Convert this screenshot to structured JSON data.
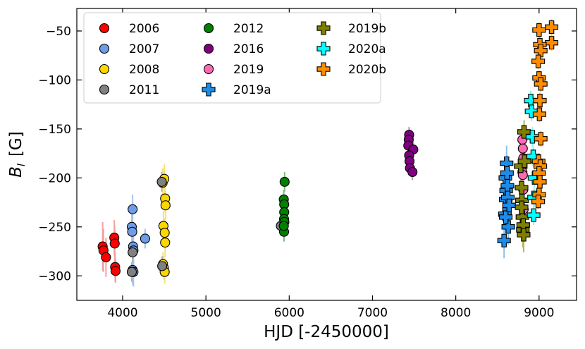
{
  "chart_data": {
    "type": "scatter",
    "title": "",
    "xlabel": "HJD  [-2450000]",
    "ylabel_main": "B",
    "ylabel_sub": "l",
    "ylabel_unit": "[G]",
    "xlim": [
      3450,
      9450
    ],
    "ylim": [
      -325,
      -27
    ],
    "xticks": [
      4000,
      5000,
      6000,
      7000,
      8000,
      9000
    ],
    "yticks": [
      -300,
      -250,
      -200,
      -150,
      -100,
      -50
    ],
    "xtick_labels": [
      "4000",
      "5000",
      "6000",
      "7000",
      "8000",
      "9000"
    ],
    "ytick_labels": [
      "−300",
      "−250",
      "−200",
      "−150",
      "−100",
      "−50"
    ],
    "grid": false,
    "legend_position": "top-left",
    "series": [
      {
        "name": "2006",
        "marker": "circle",
        "color": "#ff0000",
        "error_color": "#f4a0a0",
        "points": [
          [
            3760,
            -270
          ],
          [
            3770,
            -274
          ],
          [
            3800,
            -281
          ],
          [
            3900,
            -261
          ],
          [
            3905,
            -267
          ],
          [
            3910,
            -291
          ],
          [
            3915,
            -295
          ]
        ],
        "errors": [
          25,
          22,
          20,
          18,
          18,
          15,
          12
        ]
      },
      {
        "name": "2007",
        "marker": "circle",
        "color": "#6e9ce6",
        "error_color": "#a8c4ee",
        "points": [
          [
            4110,
            -250
          ],
          [
            4115,
            -255
          ],
          [
            4120,
            -232
          ],
          [
            4125,
            -270
          ],
          [
            4130,
            -274
          ],
          [
            4120,
            -294
          ],
          [
            4130,
            -296
          ],
          [
            4270,
            -262
          ]
        ],
        "errors": [
          15,
          15,
          15,
          15,
          15,
          15,
          15,
          10
        ]
      },
      {
        "name": "2008",
        "marker": "circle",
        "color": "#ffd700",
        "error_color": "#f5e27a",
        "points": [
          [
            4480,
            -205
          ],
          [
            4500,
            -201
          ],
          [
            4510,
            -221
          ],
          [
            4515,
            -228
          ],
          [
            4490,
            -249
          ],
          [
            4505,
            -256
          ],
          [
            4510,
            -266
          ],
          [
            4485,
            -288
          ],
          [
            4495,
            -292
          ],
          [
            4505,
            -296
          ]
        ],
        "errors": [
          15,
          15,
          15,
          15,
          15,
          15,
          15,
          12,
          12,
          12
        ]
      },
      {
        "name": "2011",
        "marker": "circle",
        "color": "#808080",
        "error_color": "#b0b0b0",
        "points": [
          [
            4470,
            -204
          ],
          [
            4475,
            -290
          ],
          [
            5900,
            -249
          ],
          [
            4110,
            -296
          ],
          [
            4120,
            -276
          ]
        ],
        "errors": [
          10,
          10,
          10,
          10,
          10
        ]
      },
      {
        "name": "2012",
        "marker": "circle",
        "color": "#008000",
        "error_color": "#7fbf7f",
        "points": [
          [
            5945,
            -204
          ],
          [
            5935,
            -222
          ],
          [
            5940,
            -227
          ],
          [
            5940,
            -235
          ],
          [
            5938,
            -242
          ],
          [
            5942,
            -245
          ],
          [
            5938,
            -255
          ],
          [
            5935,
            -249
          ]
        ],
        "errors": [
          10,
          10,
          10,
          10,
          10,
          10,
          10,
          10
        ]
      },
      {
        "name": "2016",
        "marker": "circle",
        "color": "#800080",
        "error_color": "#b98bb9",
        "points": [
          [
            7440,
            -156
          ],
          [
            7435,
            -161
          ],
          [
            7430,
            -167
          ],
          [
            7490,
            -171
          ],
          [
            7440,
            -177
          ],
          [
            7445,
            -183
          ],
          [
            7450,
            -190
          ],
          [
            7480,
            -194
          ]
        ],
        "errors": [
          8,
          8,
          8,
          8,
          8,
          8,
          8,
          8
        ]
      },
      {
        "name": "2019",
        "marker": "circle",
        "color": "#ff69b4",
        "error_color": "#f5b3d6",
        "points": [
          [
            8800,
            -161
          ],
          [
            8805,
            -170
          ],
          [
            8810,
            -180
          ],
          [
            8800,
            -194
          ],
          [
            8805,
            -197
          ],
          [
            8810,
            -212
          ],
          [
            8815,
            -232
          ]
        ],
        "errors": [
          10,
          10,
          10,
          10,
          10,
          10,
          10
        ]
      },
      {
        "name": "2019a",
        "marker": "plus",
        "color": "#1e8ce6",
        "error_color": "#8cc0ee",
        "points": [
          [
            8580,
            -264
          ],
          [
            8590,
            -237
          ],
          [
            8595,
            -200
          ],
          [
            8600,
            -222
          ],
          [
            8605,
            -213
          ],
          [
            8610,
            -185
          ],
          [
            8615,
            -195
          ],
          [
            8620,
            -208
          ],
          [
            8625,
            -220
          ],
          [
            8630,
            -250
          ],
          [
            8600,
            -240
          ],
          [
            8640,
            -228
          ]
        ],
        "errors": [
          18,
          18,
          18,
          18,
          18,
          18,
          18,
          18,
          18,
          18,
          18,
          18
        ]
      },
      {
        "name": "2019b",
        "marker": "plus",
        "color": "#808000",
        "error_color": "#b5b560",
        "points": [
          [
            8780,
            -188
          ],
          [
            8790,
            -210
          ],
          [
            8795,
            -223
          ],
          [
            8800,
            -240
          ],
          [
            8805,
            -253
          ],
          [
            8810,
            -248
          ],
          [
            8815,
            -258
          ],
          [
            8820,
            -153
          ],
          [
            8825,
            -183
          ],
          [
            8790,
            -230
          ]
        ],
        "errors": [
          25,
          20,
          20,
          18,
          18,
          18,
          18,
          12,
          15,
          15
        ]
      },
      {
        "name": "2020a",
        "marker": "plus",
        "color": "#00ffff",
        "error_color": "#8cf0f0",
        "points": [
          [
            8900,
            -121
          ],
          [
            8910,
            -132
          ],
          [
            8920,
            -158
          ],
          [
            8930,
            -178
          ],
          [
            8935,
            -238
          ],
          [
            8940,
            -220
          ],
          [
            8945,
            -200
          ]
        ],
        "errors": [
          10,
          10,
          10,
          10,
          10,
          10,
          10
        ]
      },
      {
        "name": "2020b",
        "marker": "plus",
        "color": "#ff8c00",
        "error_color": "#f5c080",
        "points": [
          [
            9150,
            -46
          ],
          [
            9000,
            -49
          ],
          [
            9150,
            -62
          ],
          [
            9010,
            -64
          ],
          [
            9020,
            -70
          ],
          [
            8990,
            -81
          ],
          [
            9000,
            -98
          ],
          [
            9020,
            -104
          ],
          [
            9010,
            -121
          ],
          [
            9005,
            -135
          ],
          [
            9020,
            -160
          ],
          [
            8995,
            -183
          ],
          [
            9015,
            -188
          ],
          [
            9000,
            -195
          ],
          [
            9010,
            -204
          ],
          [
            9000,
            -217
          ],
          [
            8990,
            -224
          ]
        ],
        "errors": [
          8,
          8,
          8,
          8,
          8,
          8,
          8,
          8,
          8,
          8,
          8,
          8,
          8,
          8,
          8,
          8,
          8
        ]
      }
    ],
    "legend_order": [
      "2006",
      "2007",
      "2008",
      "2011",
      "2012",
      "2016",
      "2019",
      "2019a",
      "2019b",
      "2020a",
      "2020b"
    ]
  }
}
